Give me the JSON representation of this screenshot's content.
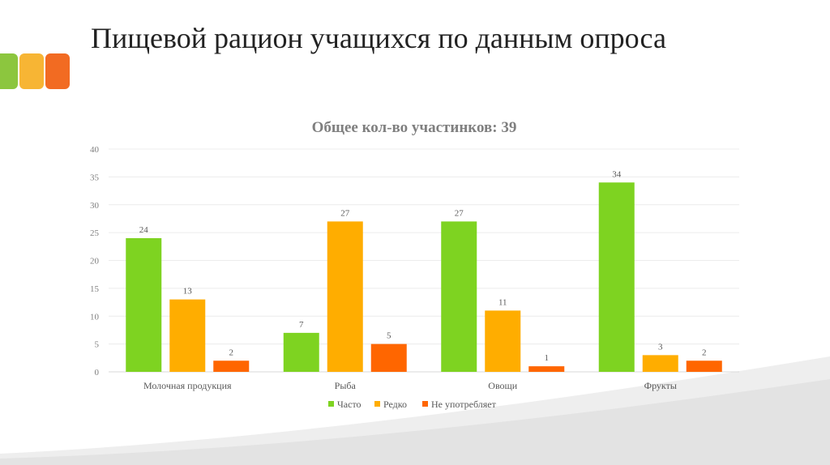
{
  "slide": {
    "title": "Пищевой рацион учащихся по данным опроса",
    "accent_colors": [
      "#8cc63e",
      "#f7b534",
      "#f26b22"
    ]
  },
  "chart_data": {
    "type": "bar",
    "title": "Общее кол-во участинков: 39",
    "categories": [
      "Молочная продукция",
      "Рыба",
      "Овощи",
      "Фрукты"
    ],
    "series": [
      {
        "name": "Часто",
        "color": "#7ed321",
        "values": [
          24,
          7,
          27,
          34
        ]
      },
      {
        "name": "Редко",
        "color": "#ffad00",
        "values": [
          13,
          27,
          11,
          3
        ]
      },
      {
        "name": "Не употребляет",
        "color": "#ff6600",
        "values": [
          2,
          5,
          1,
          2
        ]
      }
    ],
    "ylim": [
      0,
      40
    ],
    "yticks": [
      0,
      5,
      10,
      15,
      20,
      25,
      30,
      35,
      40
    ],
    "grid": true,
    "legend": "bottom",
    "data_labels": true
  }
}
